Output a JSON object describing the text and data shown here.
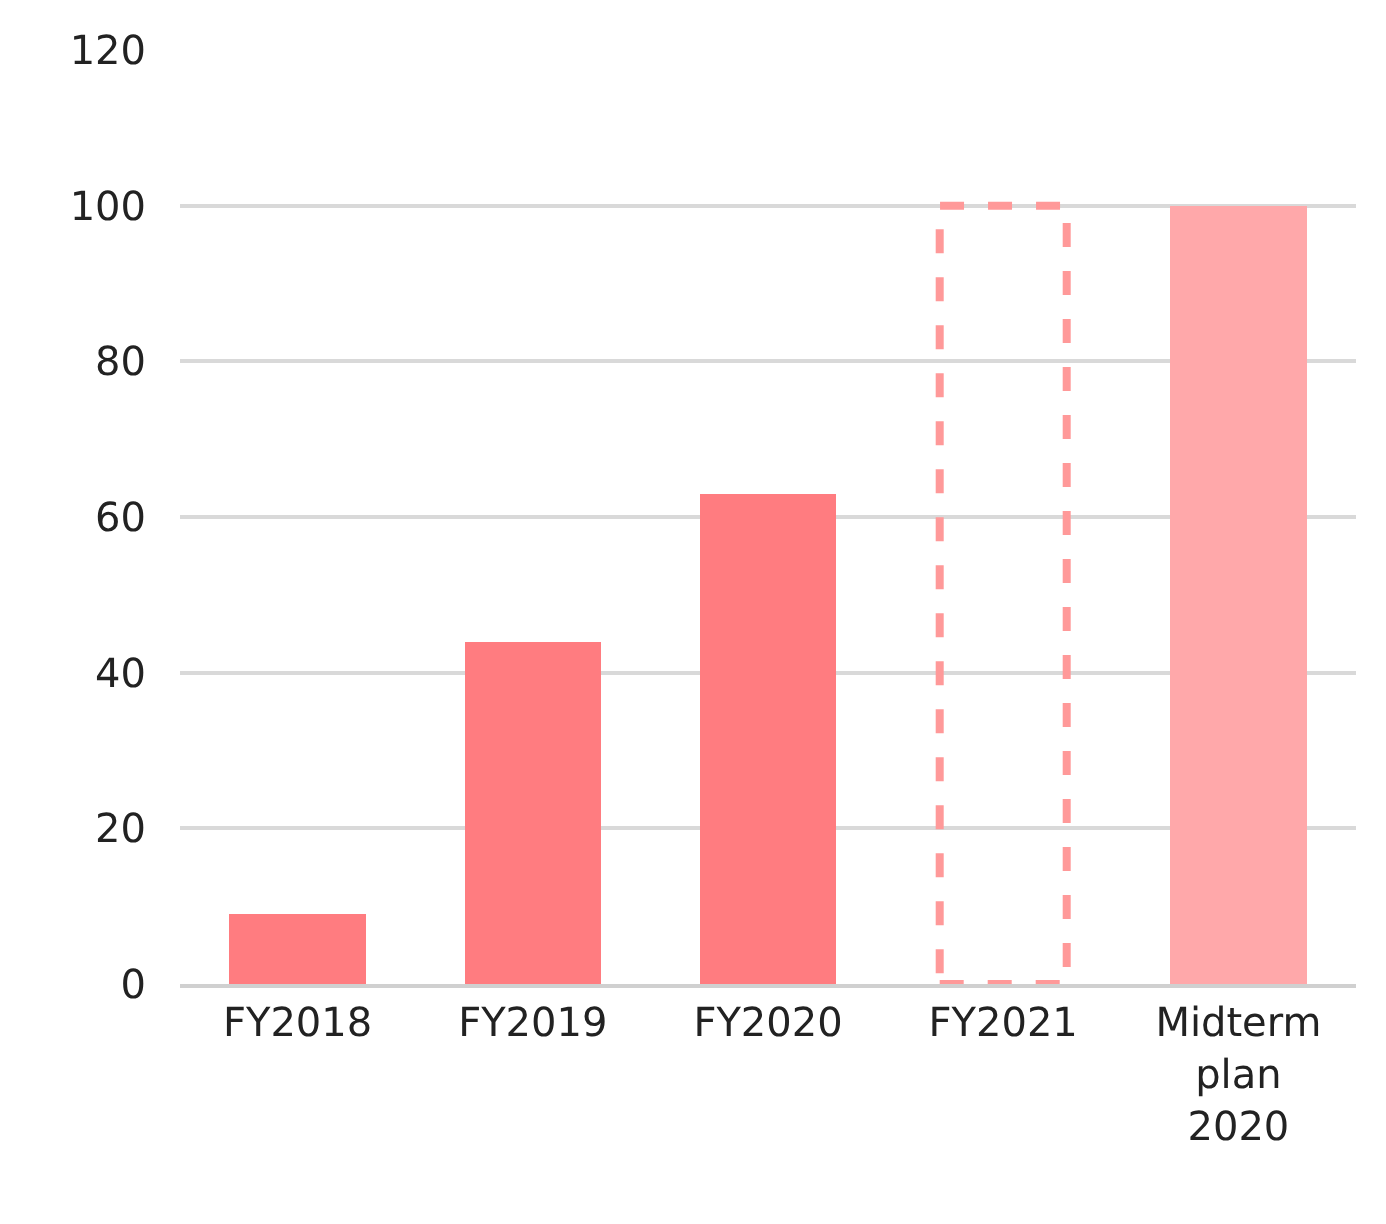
{
  "chart_data": {
    "type": "bar",
    "categories": [
      "FY2018",
      "FY2019",
      "FY2020",
      "FY2021",
      "Midterm plan 2020"
    ],
    "series": [
      {
        "color": "#ff7c80",
        "values": [
          9,
          44,
          63,
          null,
          null
        ]
      },
      {
        "color": "#ff9999",
        "values": [
          null,
          null,
          null,
          100,
          null
        ],
        "line_style": "dashed"
      },
      {
        "color": "#ffa8aa",
        "values": [
          null,
          null,
          null,
          null,
          100
        ]
      }
    ],
    "stacked": true,
    "ylim": [
      0,
      120
    ],
    "yticks": [
      0,
      20,
      40,
      60,
      80,
      100,
      120
    ],
    "grid": "y"
  }
}
